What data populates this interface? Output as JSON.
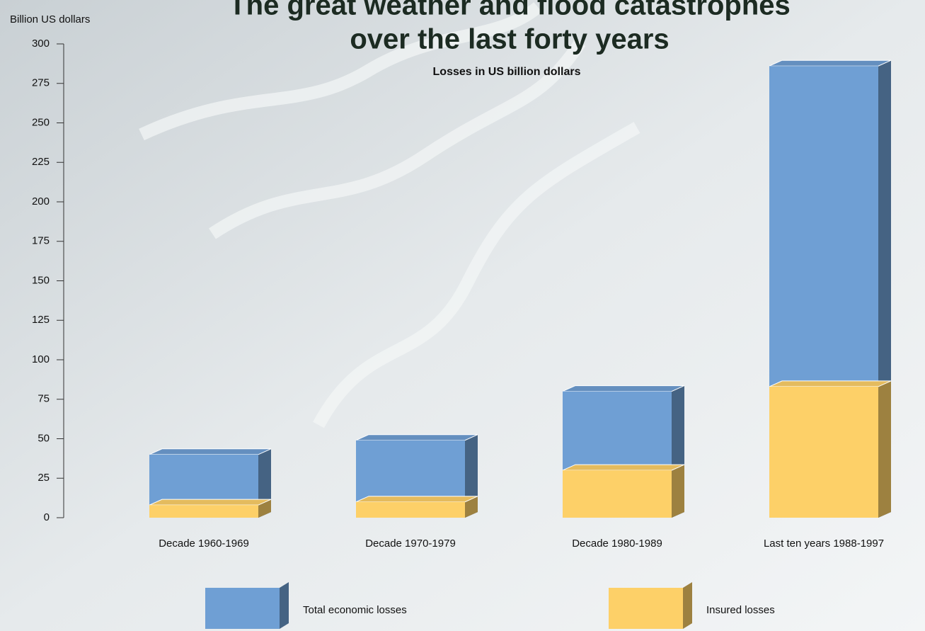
{
  "chart_data": {
    "type": "bar",
    "title": [
      "The great weather and flood catastrophes",
      "over the last forty years"
    ],
    "subtitle": "Losses in US billion dollars",
    "y_label": "Billion US dollars",
    "categories": [
      "Decade 1960-1969",
      "Decade 1970-1979",
      "Decade 1980-1989",
      "Last ten years 1988-1997"
    ],
    "series": [
      {
        "name": "Total economic losses",
        "color": "#6f9fd4",
        "values": [
          40,
          49,
          80,
          286
        ]
      },
      {
        "name": "Insured losses",
        "color": "#fdd068",
        "values": [
          8,
          10,
          30,
          83
        ]
      }
    ],
    "ylim": [
      0,
      300
    ],
    "yticks": [
      0,
      25,
      50,
      75,
      100,
      125,
      150,
      175,
      200,
      225,
      250,
      275,
      300
    ]
  }
}
